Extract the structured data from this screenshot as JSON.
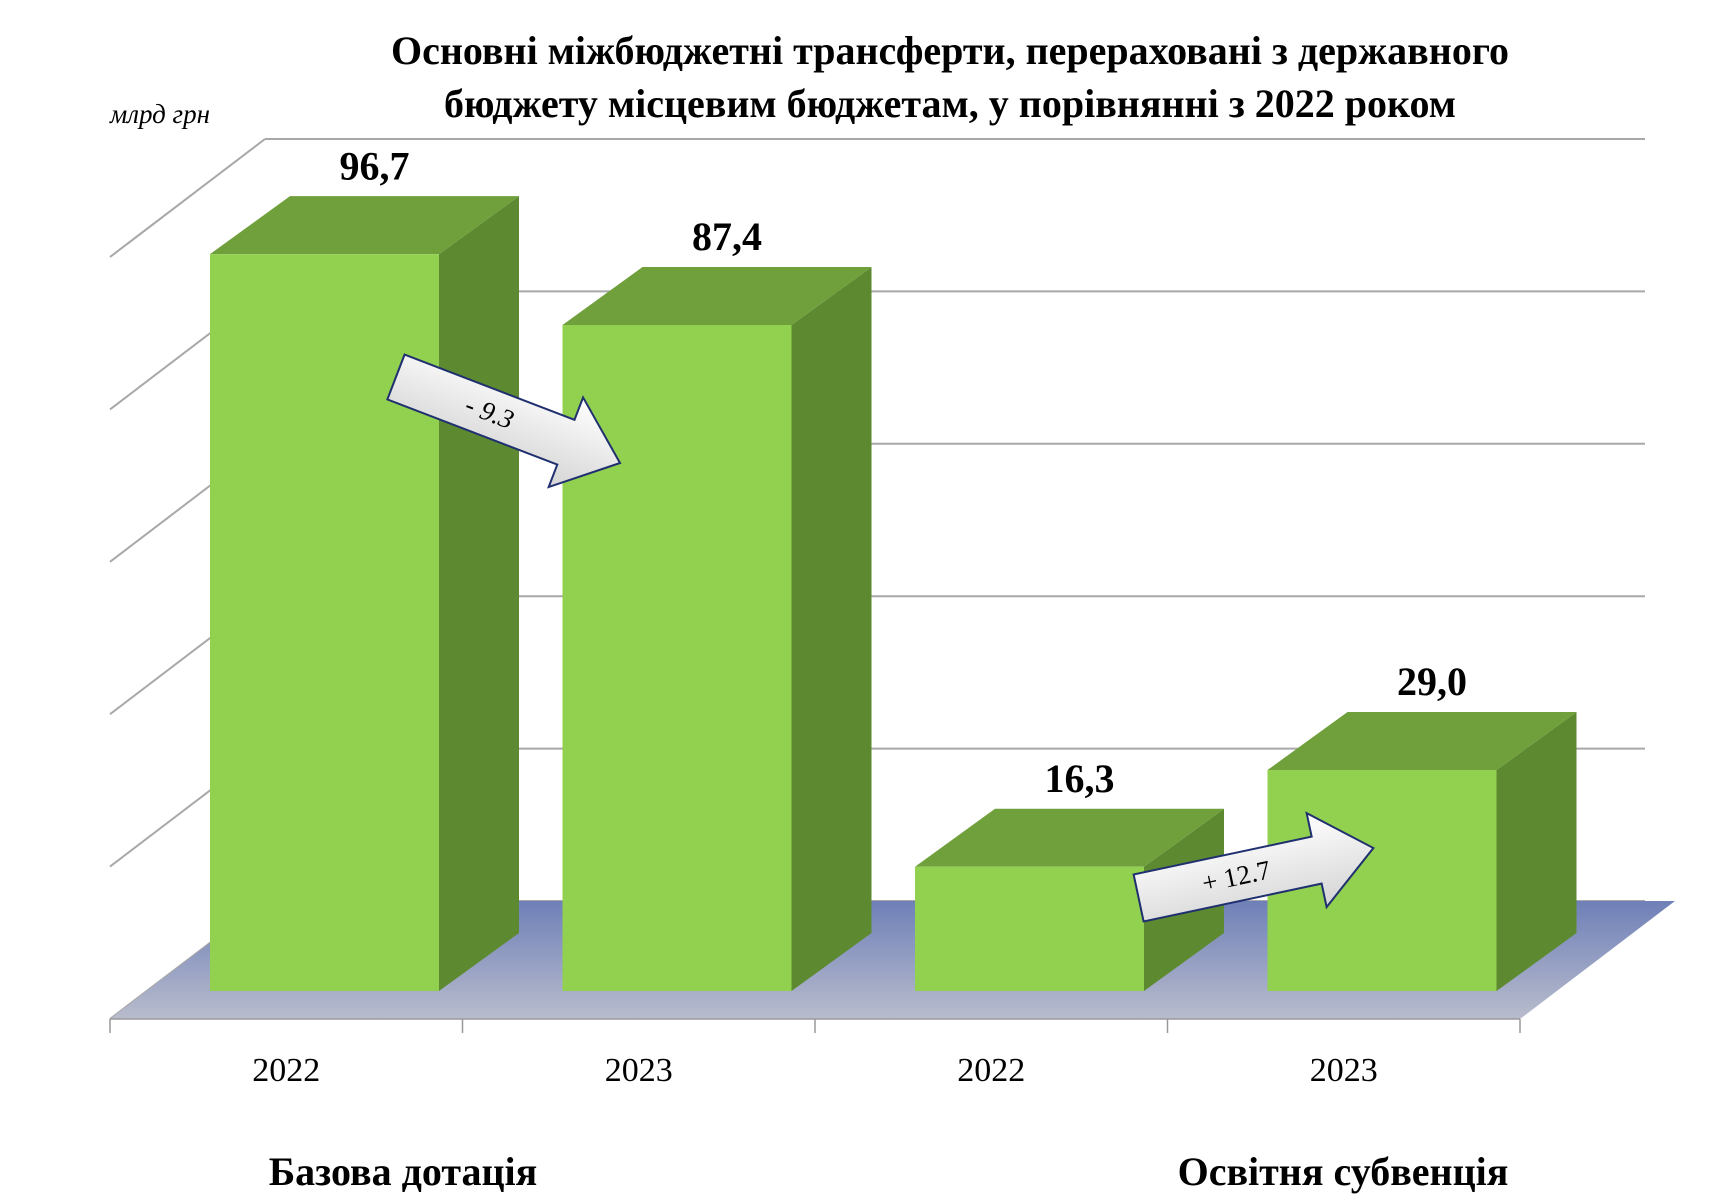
{
  "chart_data": {
    "type": "bar3d",
    "title": [
      "Основні міжбюджетні трансферти, перераховані з державного",
      "бюджету місцевим бюджетам, у порівнянні з 2022 роком"
    ],
    "y_unit": "млрд грн",
    "categories": [
      "2022",
      "2023",
      "2022",
      "2023"
    ],
    "groups": [
      "Базова дотація",
      "Освітня субвенція"
    ],
    "values": [
      96.7,
      87.4,
      16.3,
      29.0
    ],
    "value_labels": [
      "96,7",
      "87,4",
      "16,3",
      "29,0"
    ],
    "annotations": [
      "- 9.3",
      "+ 12.7"
    ],
    "colors": {
      "front": "#92d050",
      "top": "#70a03c",
      "side": "#5d8a30"
    },
    "ylim": [
      0,
      100
    ],
    "yticks": [
      0,
      20,
      40,
      60,
      80,
      100
    ],
    "grid": true
  }
}
